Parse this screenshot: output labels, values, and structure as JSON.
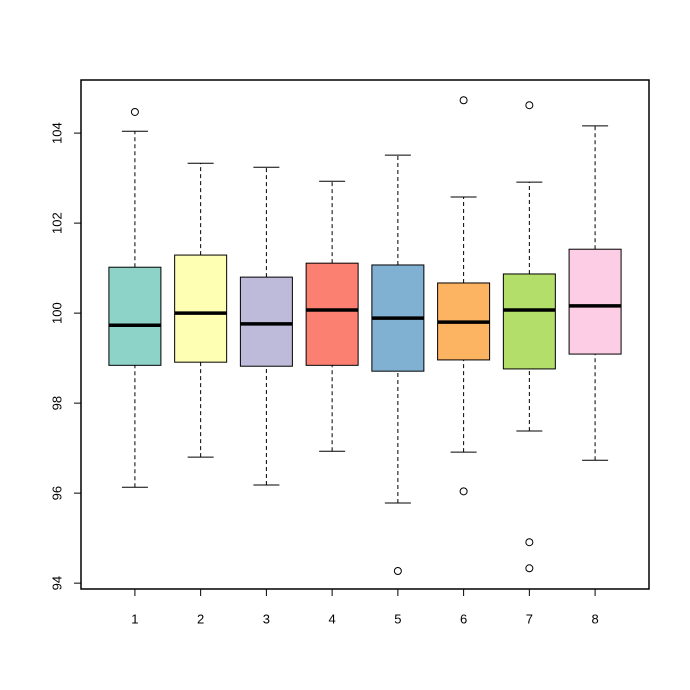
{
  "chart_data": {
    "type": "boxplot",
    "categories": [
      "1",
      "2",
      "3",
      "4",
      "5",
      "6",
      "7",
      "8"
    ],
    "whisker_low": [
      96.13,
      96.8,
      96.18,
      96.93,
      95.78,
      96.91,
      97.38,
      96.73
    ],
    "q1": [
      98.84,
      98.91,
      98.82,
      98.84,
      98.71,
      98.96,
      98.76,
      99.09
    ],
    "median": [
      99.73,
      100.0,
      99.76,
      100.07,
      99.89,
      99.8,
      100.07,
      100.16
    ],
    "q3": [
      101.02,
      101.29,
      100.8,
      101.11,
      101.07,
      100.67,
      100.87,
      101.42
    ],
    "whisker_high": [
      104.04,
      103.33,
      103.24,
      102.93,
      103.51,
      102.58,
      102.91,
      104.16
    ],
    "outliers": [
      [
        104.47
      ],
      [],
      [],
      [],
      [
        94.27
      ],
      [
        104.73,
        96.04
      ],
      [
        104.62,
        94.91,
        94.33
      ],
      []
    ],
    "colors": [
      "#8DD3C7",
      "#FFFFB3",
      "#BEBADA",
      "#FB8072",
      "#80B1D3",
      "#FDB462",
      "#B3DE69",
      "#FCCDE5"
    ],
    "ylim": [
      93.87,
      105.18
    ],
    "yticks": [
      94,
      96,
      98,
      100,
      102,
      104
    ]
  }
}
